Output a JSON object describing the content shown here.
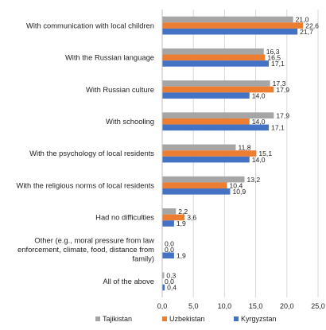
{
  "chart_data": {
    "type": "bar",
    "orientation": "horizontal",
    "categories": [
      "With communication with local children",
      "With the Russian language",
      "With Russian culture",
      "With schooling",
      "With the psychology of local residents",
      "With the religious norms of local residents",
      "Had no difficulties",
      "Other (e.g., moral pressure from law enforcement, climate, food, distance from family)",
      "All of the above"
    ],
    "category_lines": [
      [
        "With communication with local children"
      ],
      [
        "With the Russian language"
      ],
      [
        "With Russian culture"
      ],
      [
        "With schooling"
      ],
      [
        "With the psychology of local residents"
      ],
      [
        "With the religious norms of local residents"
      ],
      [
        "Had no difficulties"
      ],
      [
        "Other (e.g., moral pressure from law",
        "enforcement, climate, food, distance from",
        "family)"
      ],
      [
        "All of the above"
      ]
    ],
    "series": [
      {
        "name": "Tajikistan",
        "color": "#a5a5a5",
        "values": [
          21.0,
          16.3,
          17.3,
          17.9,
          11.8,
          13.2,
          2.2,
          0.0,
          0.3
        ],
        "labels": [
          "21,0",
          "16,3",
          "17,3",
          "17,9",
          "11,8",
          "13,2",
          "2,2",
          "0,0",
          "0,3"
        ]
      },
      {
        "name": "Uzbekistan",
        "color": "#ed7d31",
        "values": [
          22.6,
          16.5,
          17.9,
          14.0,
          15.1,
          10.4,
          3.6,
          0.0,
          0.0
        ],
        "labels": [
          "22,6",
          "16,5",
          "17,9",
          "14,0",
          "15,1",
          "10,4",
          "3,6",
          "0,0",
          "0,0"
        ]
      },
      {
        "name": "Kyrgyzstan",
        "color": "#4472c4",
        "values": [
          21.7,
          17.1,
          14.0,
          17.1,
          14.0,
          10.9,
          1.9,
          1.9,
          0.4
        ],
        "labels": [
          "21,7",
          "17,1",
          "14,0",
          "17,1",
          "14,0",
          "10,9",
          "1,9",
          "1,9",
          "0,4"
        ]
      }
    ],
    "xlim": [
      0,
      25
    ],
    "xticks": [
      0,
      5,
      10,
      15,
      20,
      25
    ],
    "xtick_labels": [
      "0,0",
      "5,0",
      "10,0",
      "15,0",
      "20,0",
      "25,0"
    ],
    "grid": true,
    "legend_position": "bottom",
    "title": "",
    "xlabel": "",
    "ylabel": ""
  }
}
